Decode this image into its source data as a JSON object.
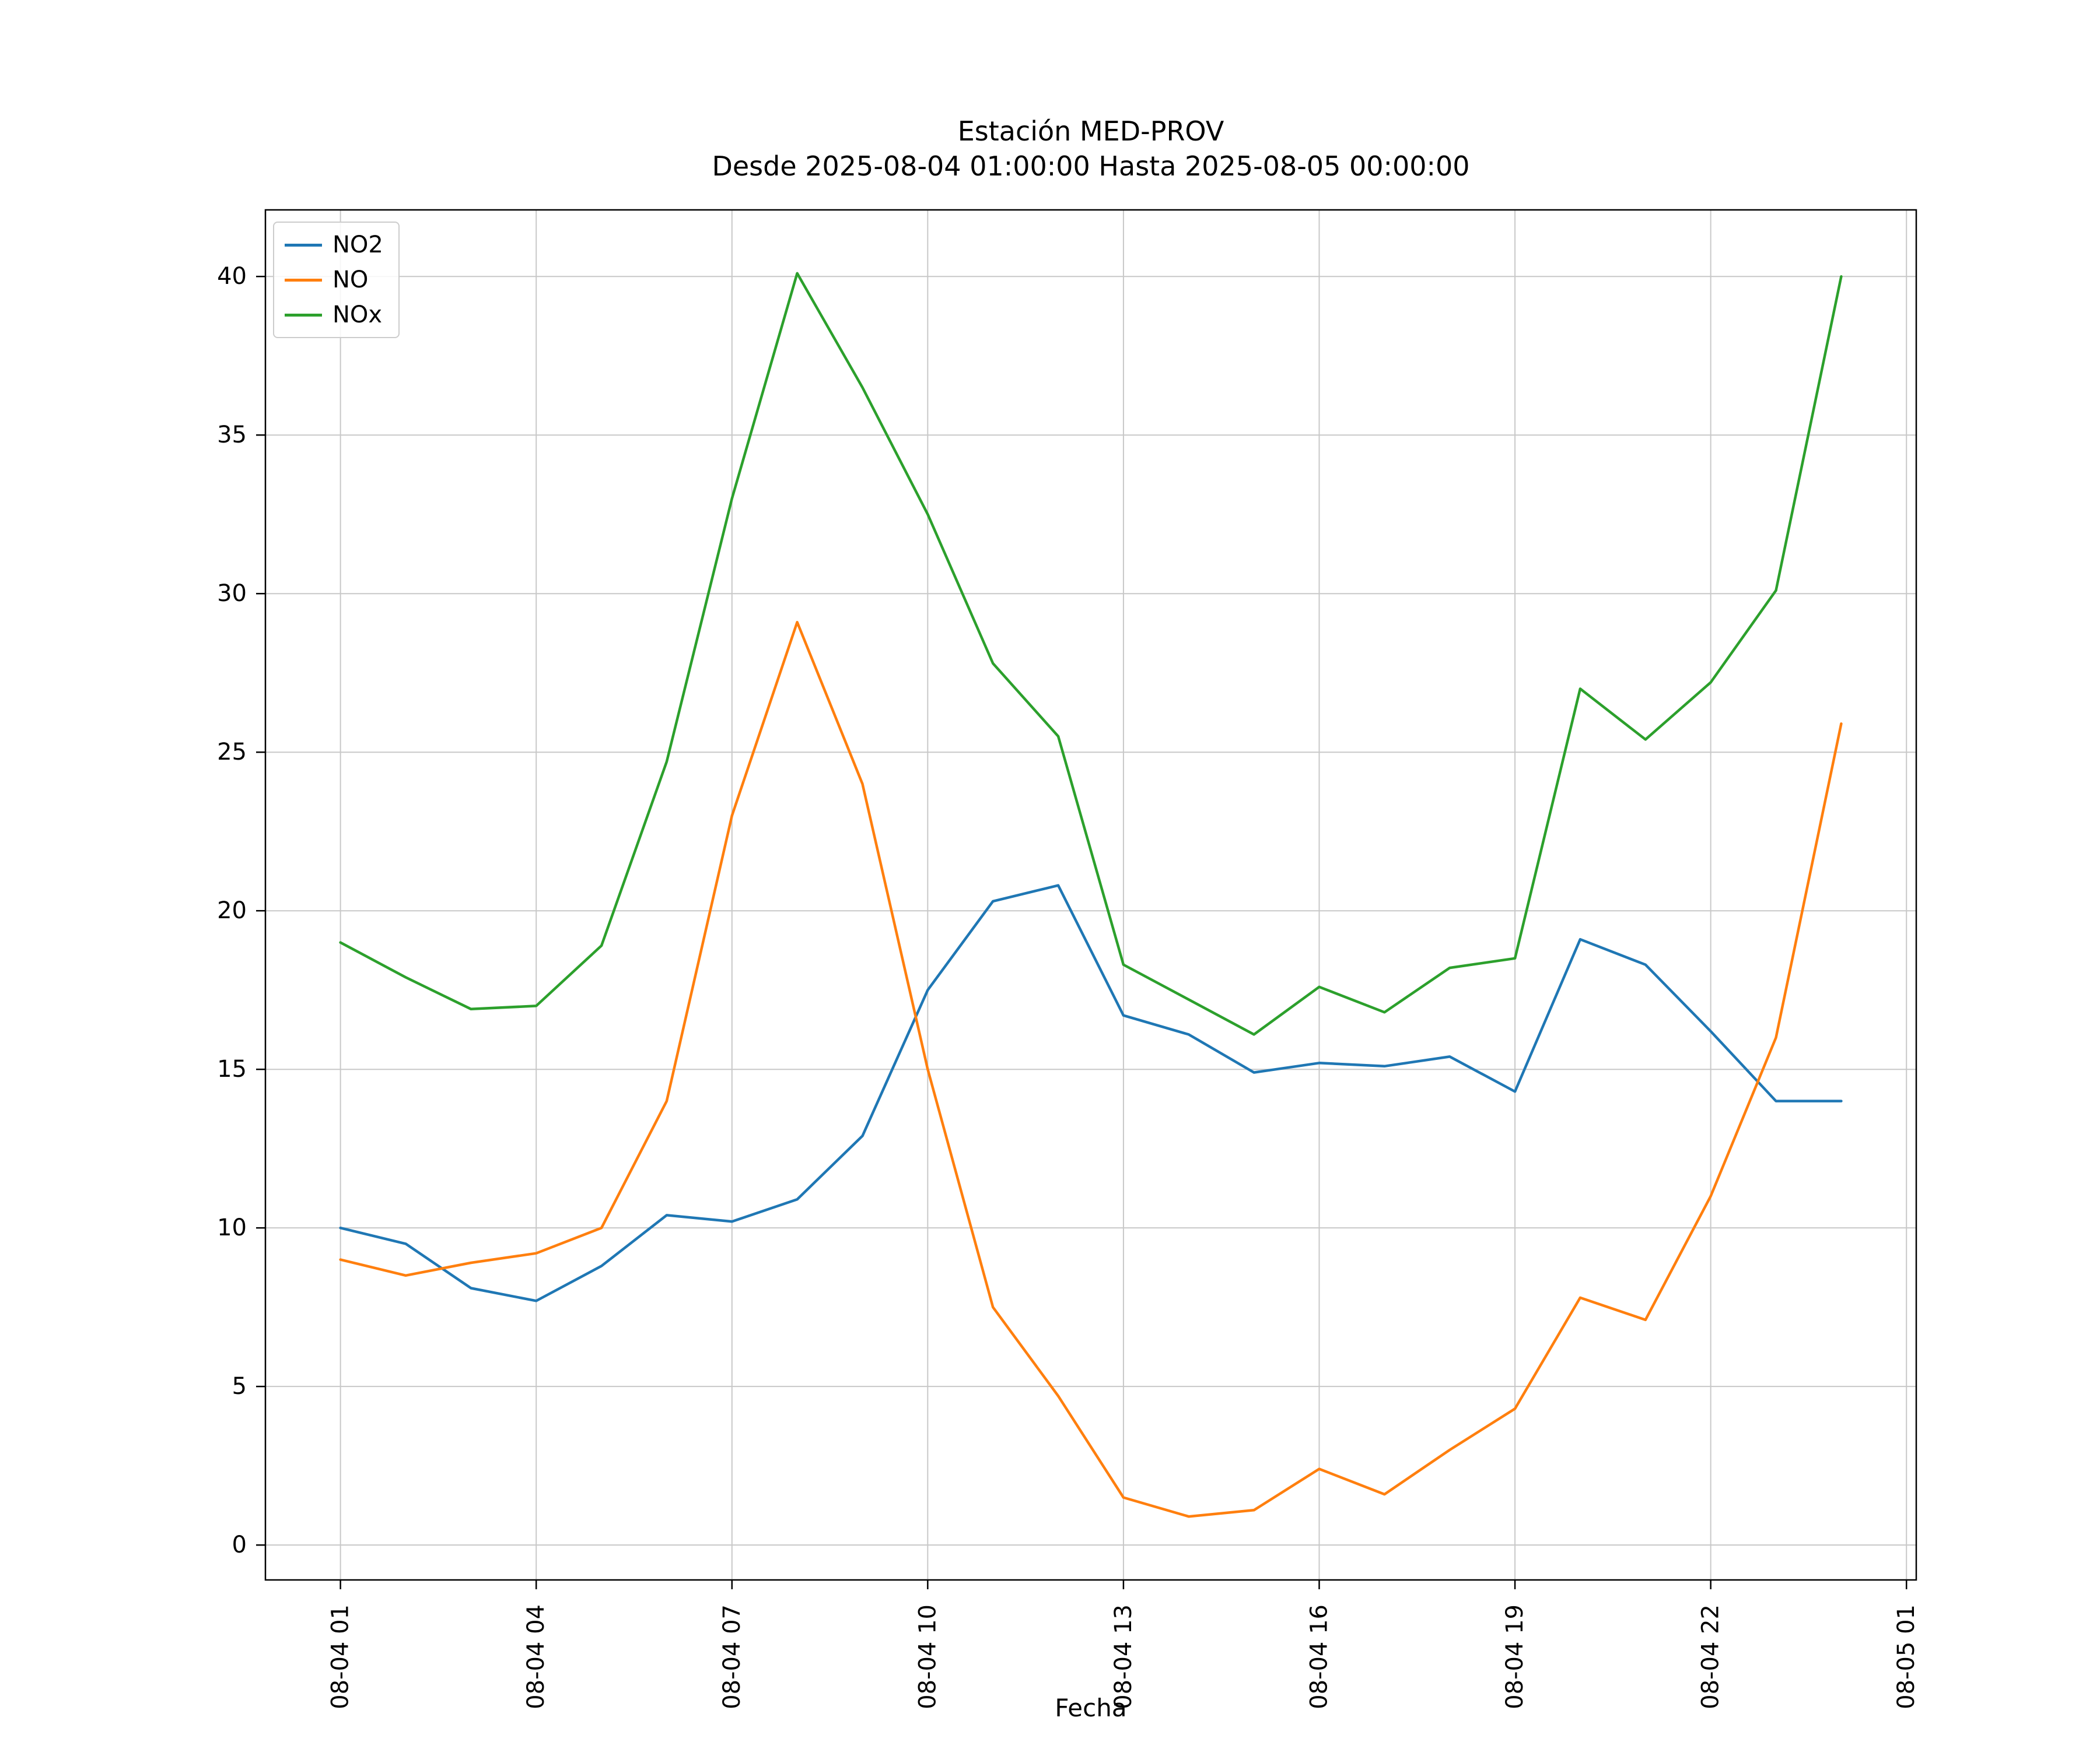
{
  "chart_data": {
    "type": "line",
    "title": "Estación MED-PROV",
    "subtitle": "Desde 2025-08-04 01:00:00 Hasta 2025-08-05 00:00:00",
    "xlabel": "Fecha",
    "ylabel": "",
    "grid": true,
    "grid_color": "#c8c8c8",
    "legend_position": "upper left",
    "xlim": [
      -0.15,
      25.15
    ],
    "ylim": [
      -1.1,
      42.1
    ],
    "x": [
      1,
      2,
      3,
      4,
      5,
      6,
      7,
      8,
      9,
      10,
      11,
      12,
      13,
      14,
      15,
      16,
      17,
      18,
      19,
      20,
      21,
      22,
      23,
      24
    ],
    "x_ticks": [
      1,
      4,
      7,
      10,
      13,
      16,
      19,
      22,
      25
    ],
    "x_tick_labels": [
      "08-04 01",
      "08-04 04",
      "08-04 07",
      "08-04 10",
      "08-04 13",
      "08-04 16",
      "08-04 19",
      "08-04 22",
      "08-05 01"
    ],
    "y_ticks": [
      0,
      5,
      10,
      15,
      20,
      25,
      30,
      35,
      40
    ],
    "series": [
      {
        "name": "NO2",
        "color": "#1f77b4",
        "values": [
          10.0,
          9.5,
          8.1,
          7.7,
          8.8,
          10.4,
          10.2,
          10.9,
          12.9,
          17.5,
          20.3,
          20.8,
          16.7,
          16.1,
          14.9,
          15.2,
          15.1,
          15.4,
          14.3,
          19.1,
          18.3,
          16.2,
          14.0,
          14.0
        ]
      },
      {
        "name": "NO",
        "color": "#ff7f0e",
        "values": [
          9.0,
          8.5,
          8.9,
          9.2,
          10.0,
          14.0,
          23.0,
          29.1,
          24.0,
          15.0,
          7.5,
          4.7,
          1.5,
          0.9,
          1.1,
          2.4,
          1.6,
          3.0,
          4.3,
          7.8,
          7.1,
          11.0,
          16.0,
          25.9
        ]
      },
      {
        "name": "NOx",
        "color": "#2ca02c",
        "values": [
          19.0,
          17.9,
          16.9,
          17.0,
          18.9,
          24.7,
          33.0,
          40.1,
          36.5,
          32.5,
          27.8,
          25.5,
          18.3,
          17.2,
          16.1,
          17.6,
          16.8,
          18.2,
          18.5,
          27.0,
          25.4,
          27.2,
          30.1,
          40.0
        ]
      }
    ]
  }
}
